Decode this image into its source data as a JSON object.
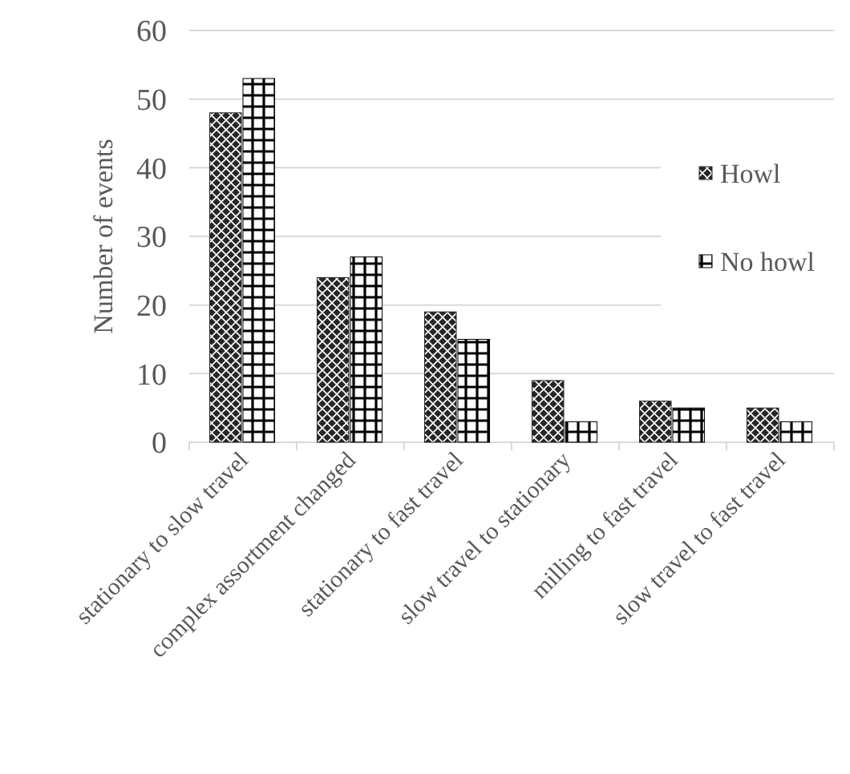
{
  "chart_data": {
    "type": "bar",
    "ylabel": "Number of events",
    "categories": [
      "stationary to slow travel",
      "complex assortment changed",
      "stationary to fast travel",
      "slow travel to stationary",
      "milling to fast travel",
      "slow travel to fast travel"
    ],
    "series": [
      {
        "name": "Howl",
        "color": "#262626",
        "values": [
          48,
          24,
          19,
          9,
          6,
          5
        ]
      },
      {
        "name": "No howl",
        "color": "#000000",
        "values": [
          53,
          27,
          15,
          3,
          5,
          3
        ]
      }
    ],
    "ylim": [
      0,
      60
    ],
    "yticks": [
      0,
      10,
      20,
      30,
      40,
      50,
      60
    ],
    "grid": "y",
    "legend": "right"
  }
}
